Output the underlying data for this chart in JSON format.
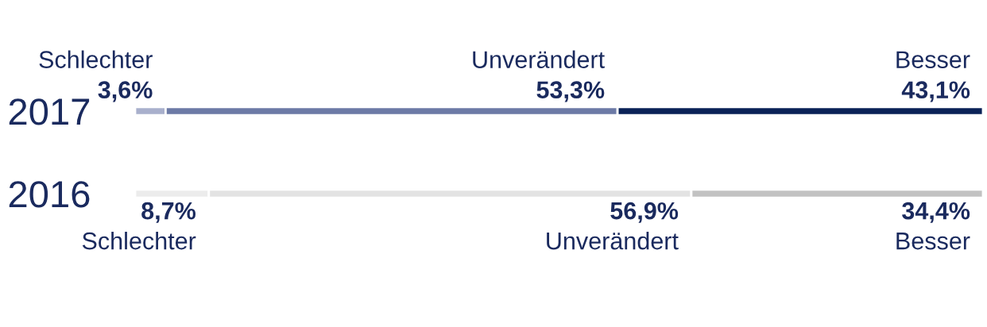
{
  "chart_data": {
    "type": "bar",
    "orientation": "horizontal",
    "stacked": true,
    "categories": [
      "2017",
      "2016"
    ],
    "series": [
      {
        "name": "Schlechter",
        "values": [
          3.6,
          8.7
        ],
        "colors": [
          "#a9b0cc",
          "#ececec"
        ],
        "value_labels": [
          "3,6%",
          "8,7%"
        ]
      },
      {
        "name": "Unverändert",
        "values": [
          53.3,
          56.9
        ],
        "colors": [
          "#6c7aa6",
          "#e3e3e3"
        ],
        "value_labels": [
          "53,3%",
          "56,9%"
        ]
      },
      {
        "name": "Besser",
        "values": [
          43.1,
          34.4
        ],
        "colors": [
          "#0a2257",
          "#c2c2c2"
        ],
        "value_labels": [
          "43,1%",
          "34,4%"
        ]
      }
    ],
    "legend": false,
    "grid": false,
    "tick_labels": "y"
  }
}
